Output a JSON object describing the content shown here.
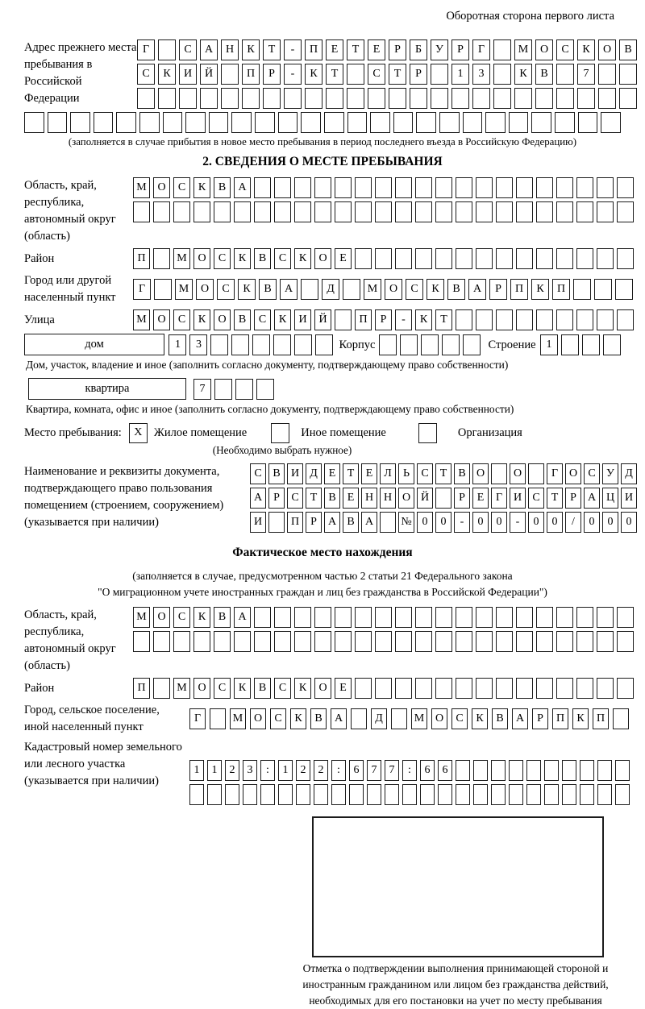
{
  "header": {
    "note": "Оборотная сторона первого листа"
  },
  "prev_address": {
    "label": "Адрес прежнего места пребывания в Российской Федерации",
    "rows": [
      {
        "text": "Г САНКТ-ПЕТЕРБУРГ МОСКОВ",
        "boxes": 24
      },
      {
        "text": "СКИЙ ПР-КТ СТР 13 КВ 7",
        "boxes": 24
      },
      {
        "text": "",
        "boxes": 24
      }
    ],
    "overflow_row": {
      "text": "",
      "boxes": 26
    },
    "note": "(заполняется в случае прибытия в новое место пребывания в период последнего въезда в Российскую Федерацию)"
  },
  "section2": {
    "title": "2. СВЕДЕНИЯ О МЕСТЕ ПРЕБЫВАНИЯ",
    "region": {
      "label": "Область, край, республика, автономный округ (область)",
      "rows": [
        {
          "text": "МОСКВА",
          "boxes": 25
        },
        {
          "text": "",
          "boxes": 25
        }
      ]
    },
    "district": {
      "label": "Район",
      "row": {
        "text": "П МОСКВСКОЕ",
        "boxes": 25
      }
    },
    "city": {
      "label": "Город или другой населенный пункт",
      "row": {
        "text": "Г МОСКВА Д МОСКВАРПКП",
        "boxes": 24
      }
    },
    "street": {
      "label": "Улица",
      "row": {
        "text": "МОСКОВСКИЙ ПР-КТ",
        "boxes": 25
      }
    },
    "house": {
      "type_label": "дом",
      "number": {
        "text": "13",
        "boxes": 8
      },
      "korpus_label": "Корпус",
      "korpus": {
        "text": "",
        "boxes": 5
      },
      "stroenie_label": "Строение",
      "stroenie": {
        "text": "1",
        "boxes": 4
      },
      "note": "Дом, участок, владение и иное (заполнить согласно документу, подтверждающему право собственности)"
    },
    "apartment": {
      "type_label": "квартира",
      "number": {
        "text": "7",
        "boxes": 4
      },
      "note": "Квартира, комната, офис и иное (заполнить согласно документу, подтверждающему право собственности)"
    },
    "stay_type": {
      "label": "Место пребывания:",
      "options": [
        {
          "label": "Жилое помещение",
          "checked": true,
          "mark": "X"
        },
        {
          "label": "Иное помещение",
          "checked": false,
          "mark": ""
        },
        {
          "label": "Организация",
          "checked": false,
          "mark": ""
        }
      ],
      "note": "(Необходимо выбрать нужное)"
    },
    "document": {
      "label": "Наименование и реквизиты документа, подтверждающего право пользования помещением (строением, сооружением) (указывается при наличии)",
      "rows": [
        {
          "text": "СВИДЕТЕЛЬСТВО О ГОСУД",
          "boxes": 21
        },
        {
          "text": "АРСТВЕННОЙ РЕГИСТРАЦИ",
          "boxes": 21
        },
        {
          "text": "И ПРАВА №00-00-00/000",
          "boxes": 21
        }
      ]
    }
  },
  "actual_location": {
    "title": "Фактическое место нахождения",
    "note_line1": "(заполняется в случае, предусмотренном частью 2 статьи 21 Федерального закона",
    "note_line2": "\"О миграционном учете иностранных граждан и лиц без гражданства в Российской Федерации\")",
    "region": {
      "label": "Область, край, республика, автономный округ (область)",
      "rows": [
        {
          "text": "МОСКВА",
          "boxes": 25
        },
        {
          "text": "",
          "boxes": 25
        }
      ]
    },
    "district": {
      "label": "Район",
      "row": {
        "text": "П МОСКВСКОЕ",
        "boxes": 25
      }
    },
    "city": {
      "label": "Город, сельское поселение, иной населенный пункт",
      "row": {
        "text": "Г МОСКВА Д МОСКВАРПКП",
        "boxes": 22
      }
    },
    "cadastre": {
      "label": "Кадастровый номер земельного или лесного участка (указывается при наличии)",
      "rows": [
        {
          "text": "1123:122:677:66",
          "boxes": 25
        },
        {
          "text": "",
          "boxes": 25
        }
      ]
    },
    "stamp_note": "Отметка о подтверждении выполнения принимающей стороной и иностранным гражданином или лицом без гражданства действий, необходимых для его постановки на учет по месту пребывания"
  }
}
